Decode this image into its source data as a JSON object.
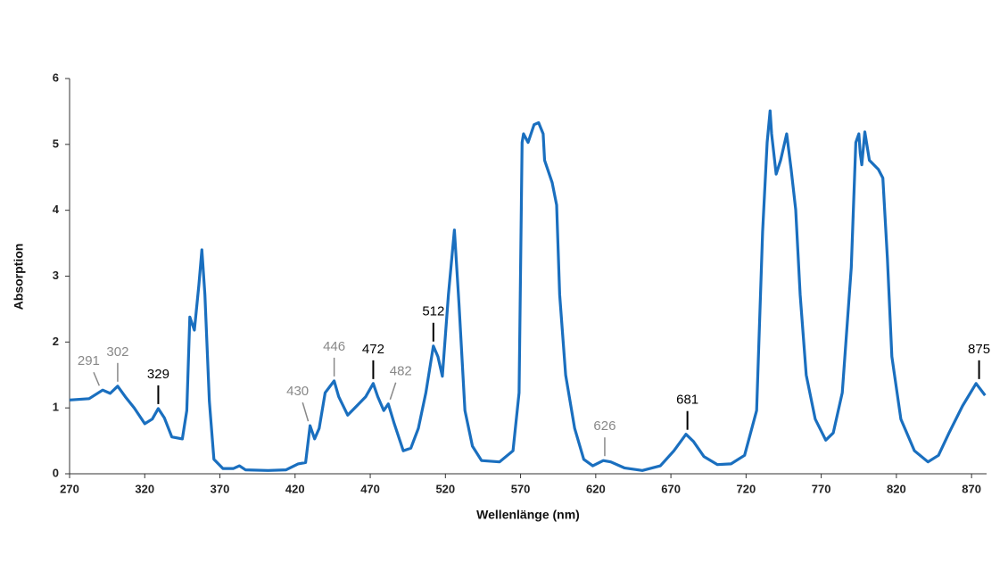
{
  "chart_data": {
    "type": "line",
    "x_label": "Wellenlänge (nm)",
    "y_label": "Absorption",
    "xlim": [
      270,
      880
    ],
    "ylim": [
      0,
      6
    ],
    "xticks": [
      270,
      320,
      370,
      420,
      470,
      520,
      570,
      620,
      670,
      720,
      770,
      820,
      870
    ],
    "yticks": [
      0,
      1,
      2,
      3,
      4,
      5,
      6
    ],
    "series": [
      {
        "name": null,
        "color": "#1a6fbf",
        "x": [
          270,
          283,
          292,
          297,
          302,
          307,
          313,
          320,
          325,
          329,
          333,
          338,
          345,
          348,
          350,
          353,
          356,
          358,
          360,
          363,
          366,
          372,
          379,
          383,
          387,
          402,
          414,
          422,
          427,
          430,
          433,
          436,
          440,
          446,
          449,
          455,
          461,
          467,
          472,
          475,
          479,
          482,
          486,
          492,
          497,
          502,
          507,
          512,
          515,
          518,
          522,
          526,
          529,
          533,
          538,
          544,
          556,
          565,
          569,
          571,
          572,
          575,
          579,
          582,
          585,
          586,
          591,
          594,
          596,
          600,
          606,
          612,
          618,
          625,
          630,
          639,
          651,
          663,
          672,
          680,
          685,
          692,
          701,
          710,
          719,
          727,
          731,
          734,
          736,
          737,
          740,
          743,
          747,
          750,
          753,
          756,
          760,
          766,
          773,
          778,
          784,
          790,
          793,
          795,
          796,
          797,
          799,
          802,
          808,
          811,
          814,
          817,
          823,
          832,
          841,
          848,
          855,
          864,
          873,
          879
        ],
        "values": [
          1.12,
          1.14,
          1.27,
          1.22,
          1.33,
          1.17,
          1.0,
          0.76,
          0.83,
          0.99,
          0.85,
          0.56,
          0.53,
          0.96,
          2.38,
          2.18,
          2.86,
          3.4,
          2.72,
          1.1,
          0.22,
          0.08,
          0.08,
          0.12,
          0.06,
          0.05,
          0.06,
          0.15,
          0.17,
          0.73,
          0.53,
          0.69,
          1.23,
          1.41,
          1.17,
          0.89,
          1.03,
          1.17,
          1.37,
          1.17,
          0.96,
          1.06,
          0.76,
          0.35,
          0.39,
          0.69,
          1.23,
          1.94,
          1.78,
          1.48,
          2.72,
          3.7,
          2.59,
          0.96,
          0.42,
          0.2,
          0.18,
          0.35,
          1.23,
          5.03,
          5.16,
          5.03,
          5.3,
          5.33,
          5.16,
          4.76,
          4.42,
          4.08,
          2.72,
          1.5,
          0.69,
          0.22,
          0.12,
          0.2,
          0.18,
          0.09,
          0.05,
          0.12,
          0.35,
          0.6,
          0.49,
          0.26,
          0.14,
          0.15,
          0.28,
          0.96,
          3.67,
          5.03,
          5.51,
          5.16,
          4.55,
          4.76,
          5.16,
          4.62,
          4.01,
          2.72,
          1.5,
          0.83,
          0.51,
          0.62,
          1.23,
          3.13,
          5.03,
          5.16,
          4.86,
          4.69,
          5.19,
          4.76,
          4.62,
          4.49,
          3.27,
          1.78,
          0.83,
          0.35,
          0.18,
          0.28,
          0.62,
          1.03,
          1.37,
          1.19
        ]
      }
    ],
    "annotations": [
      {
        "text": "291",
        "x": 291,
        "y": 1.27,
        "color": "#888888"
      },
      {
        "text": "302",
        "x": 302,
        "y": 1.33,
        "color": "#888888"
      },
      {
        "text": "329",
        "x": 329,
        "y": 0.99,
        "color": "#000000"
      },
      {
        "text": "430",
        "x": 430,
        "y": 0.73,
        "color": "#888888"
      },
      {
        "text": "446",
        "x": 446,
        "y": 1.41,
        "color": "#888888"
      },
      {
        "text": "472",
        "x": 472,
        "y": 1.37,
        "color": "#000000"
      },
      {
        "text": "482",
        "x": 482,
        "y": 1.06,
        "color": "#888888"
      },
      {
        "text": "512",
        "x": 512,
        "y": 1.94,
        "color": "#000000"
      },
      {
        "text": "626",
        "x": 626,
        "y": 0.2,
        "color": "#888888"
      },
      {
        "text": "681",
        "x": 681,
        "y": 0.6,
        "color": "#000000"
      },
      {
        "text": "875",
        "x": 875,
        "y": 1.37,
        "color": "#000000"
      }
    ]
  }
}
